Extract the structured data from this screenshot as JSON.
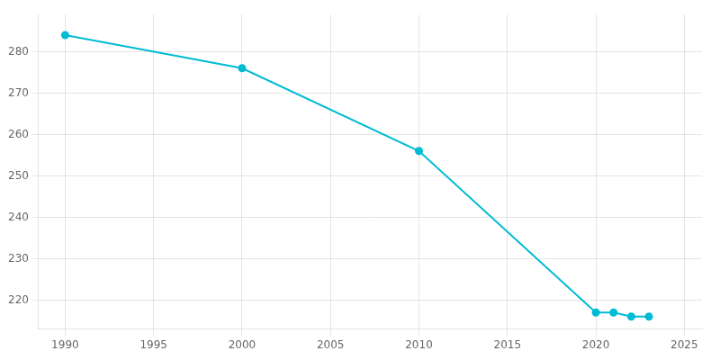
{
  "chart_data": {
    "type": "line",
    "x": [
      1990,
      2000,
      2010,
      2020,
      2021,
      2022,
      2023
    ],
    "values": [
      284,
      276,
      256,
      217,
      217,
      216,
      216
    ],
    "color": "#00BCD4",
    "marker": "circle",
    "xlim": [
      1988.5,
      2026
    ],
    "xticks": [
      1990,
      1995,
      2000,
      2005,
      2010,
      2015,
      2020,
      2025
    ],
    "ylim": [
      213,
      289
    ],
    "yticks": [
      220,
      230,
      240,
      250,
      260,
      270,
      280
    ],
    "grid": true
  }
}
